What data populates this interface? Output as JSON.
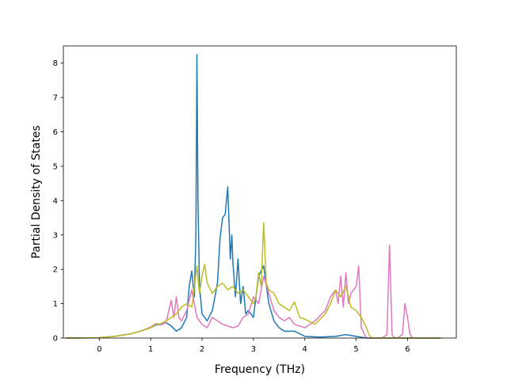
{
  "chart_data": {
    "type": "line",
    "title": "",
    "xlabel": "Frequency (THz)",
    "ylabel": "Partial Density of States",
    "xlim": [
      -0.7,
      6.95
    ],
    "ylim": [
      0,
      8.5
    ],
    "xticks": [
      0,
      1,
      2,
      3,
      4,
      5,
      6
    ],
    "yticks": [
      0,
      1,
      2,
      3,
      4,
      5,
      6,
      7,
      8
    ],
    "grid": false,
    "legend": "none",
    "series": [
      {
        "color": "#1f77b4",
        "x": [
          -0.65,
          0,
          0.3,
          0.6,
          0.8,
          1.0,
          1.1,
          1.2,
          1.3,
          1.4,
          1.5,
          1.6,
          1.7,
          1.75,
          1.8,
          1.85,
          1.88,
          1.9,
          1.92,
          1.95,
          2.0,
          2.1,
          2.2,
          2.3,
          2.35,
          2.4,
          2.45,
          2.5,
          2.55,
          2.58,
          2.6,
          2.65,
          2.7,
          2.75,
          2.8,
          2.85,
          2.9,
          3.0,
          3.1,
          3.2,
          3.3,
          3.4,
          3.5,
          3.6,
          3.8,
          4.0,
          4.3,
          4.6,
          4.8,
          5.0,
          5.2,
          5.5,
          6.0,
          6.65
        ],
        "y": [
          0,
          0.01,
          0.05,
          0.12,
          0.2,
          0.3,
          0.38,
          0.4,
          0.45,
          0.35,
          0.2,
          0.3,
          0.6,
          1.5,
          1.95,
          1.2,
          3.0,
          8.25,
          4.0,
          1.5,
          0.7,
          0.5,
          0.8,
          1.6,
          2.9,
          3.5,
          3.6,
          4.4,
          2.3,
          3.0,
          2.2,
          1.2,
          2.3,
          1.0,
          1.5,
          0.7,
          0.8,
          0.6,
          1.8,
          2.1,
          1.0,
          0.5,
          0.3,
          0.2,
          0.2,
          0.05,
          0.03,
          0.05,
          0.1,
          0.05,
          0.0,
          0.0,
          0.0,
          0.0
        ]
      },
      {
        "color": "#e377c2",
        "x": [
          -0.65,
          0,
          0.3,
          0.6,
          0.8,
          1.0,
          1.1,
          1.2,
          1.3,
          1.4,
          1.45,
          1.5,
          1.55,
          1.6,
          1.7,
          1.8,
          1.9,
          2.0,
          2.1,
          2.2,
          2.3,
          2.4,
          2.5,
          2.6,
          2.7,
          2.8,
          2.9,
          3.0,
          3.1,
          3.2,
          3.3,
          3.4,
          3.5,
          3.6,
          3.7,
          3.8,
          3.9,
          4.0,
          4.2,
          4.4,
          4.5,
          4.6,
          4.65,
          4.7,
          4.75,
          4.8,
          4.85,
          4.9,
          5.0,
          5.05,
          5.1,
          5.2,
          5.3,
          5.5,
          5.6,
          5.65,
          5.7,
          5.75,
          5.8,
          5.9,
          5.95,
          6.0,
          6.05,
          6.1,
          6.3,
          6.65
        ],
        "y": [
          0,
          0.01,
          0.05,
          0.12,
          0.2,
          0.32,
          0.42,
          0.38,
          0.45,
          1.1,
          0.6,
          1.2,
          0.6,
          0.5,
          0.8,
          1.4,
          0.6,
          0.4,
          0.3,
          0.6,
          0.5,
          0.4,
          0.35,
          0.3,
          0.35,
          0.6,
          0.7,
          1.2,
          1.0,
          1.8,
          1.3,
          0.8,
          0.6,
          0.5,
          0.6,
          0.4,
          0.35,
          0.3,
          0.5,
          0.8,
          1.2,
          1.4,
          1.0,
          1.8,
          0.9,
          1.9,
          1.0,
          1.3,
          1.5,
          2.1,
          0.3,
          0.0,
          0.0,
          0.0,
          0.1,
          2.7,
          0.1,
          0.0,
          0.0,
          0.1,
          1.0,
          0.6,
          0.1,
          0.0,
          0.0,
          0.0
        ]
      },
      {
        "color": "#bcbd22",
        "x": [
          -0.65,
          0,
          0.3,
          0.6,
          0.8,
          1.0,
          1.1,
          1.2,
          1.3,
          1.4,
          1.5,
          1.6,
          1.7,
          1.8,
          1.85,
          1.9,
          1.95,
          2.0,
          2.05,
          2.1,
          2.2,
          2.3,
          2.4,
          2.5,
          2.6,
          2.7,
          2.8,
          2.9,
          3.0,
          3.05,
          3.1,
          3.15,
          3.2,
          3.25,
          3.3,
          3.4,
          3.5,
          3.6,
          3.7,
          3.8,
          3.9,
          4.0,
          4.2,
          4.4,
          4.5,
          4.6,
          4.7,
          4.8,
          4.9,
          5.0,
          5.1,
          5.2,
          5.25,
          5.3,
          5.5,
          6.0,
          6.65
        ],
        "y": [
          0,
          0.01,
          0.05,
          0.12,
          0.2,
          0.3,
          0.4,
          0.42,
          0.5,
          0.6,
          0.7,
          0.9,
          1.0,
          0.9,
          1.5,
          2.1,
          1.3,
          1.8,
          2.15,
          1.6,
          1.3,
          1.5,
          1.6,
          1.4,
          1.5,
          1.3,
          1.4,
          1.2,
          1.0,
          1.2,
          1.9,
          1.5,
          3.35,
          1.6,
          1.4,
          1.3,
          1.0,
          0.9,
          0.8,
          1.05,
          0.6,
          0.55,
          0.4,
          0.7,
          1.0,
          1.4,
          1.2,
          1.5,
          0.9,
          0.8,
          0.6,
          0.3,
          0.1,
          0.0,
          0.0,
          0.0,
          0.0
        ]
      }
    ]
  }
}
